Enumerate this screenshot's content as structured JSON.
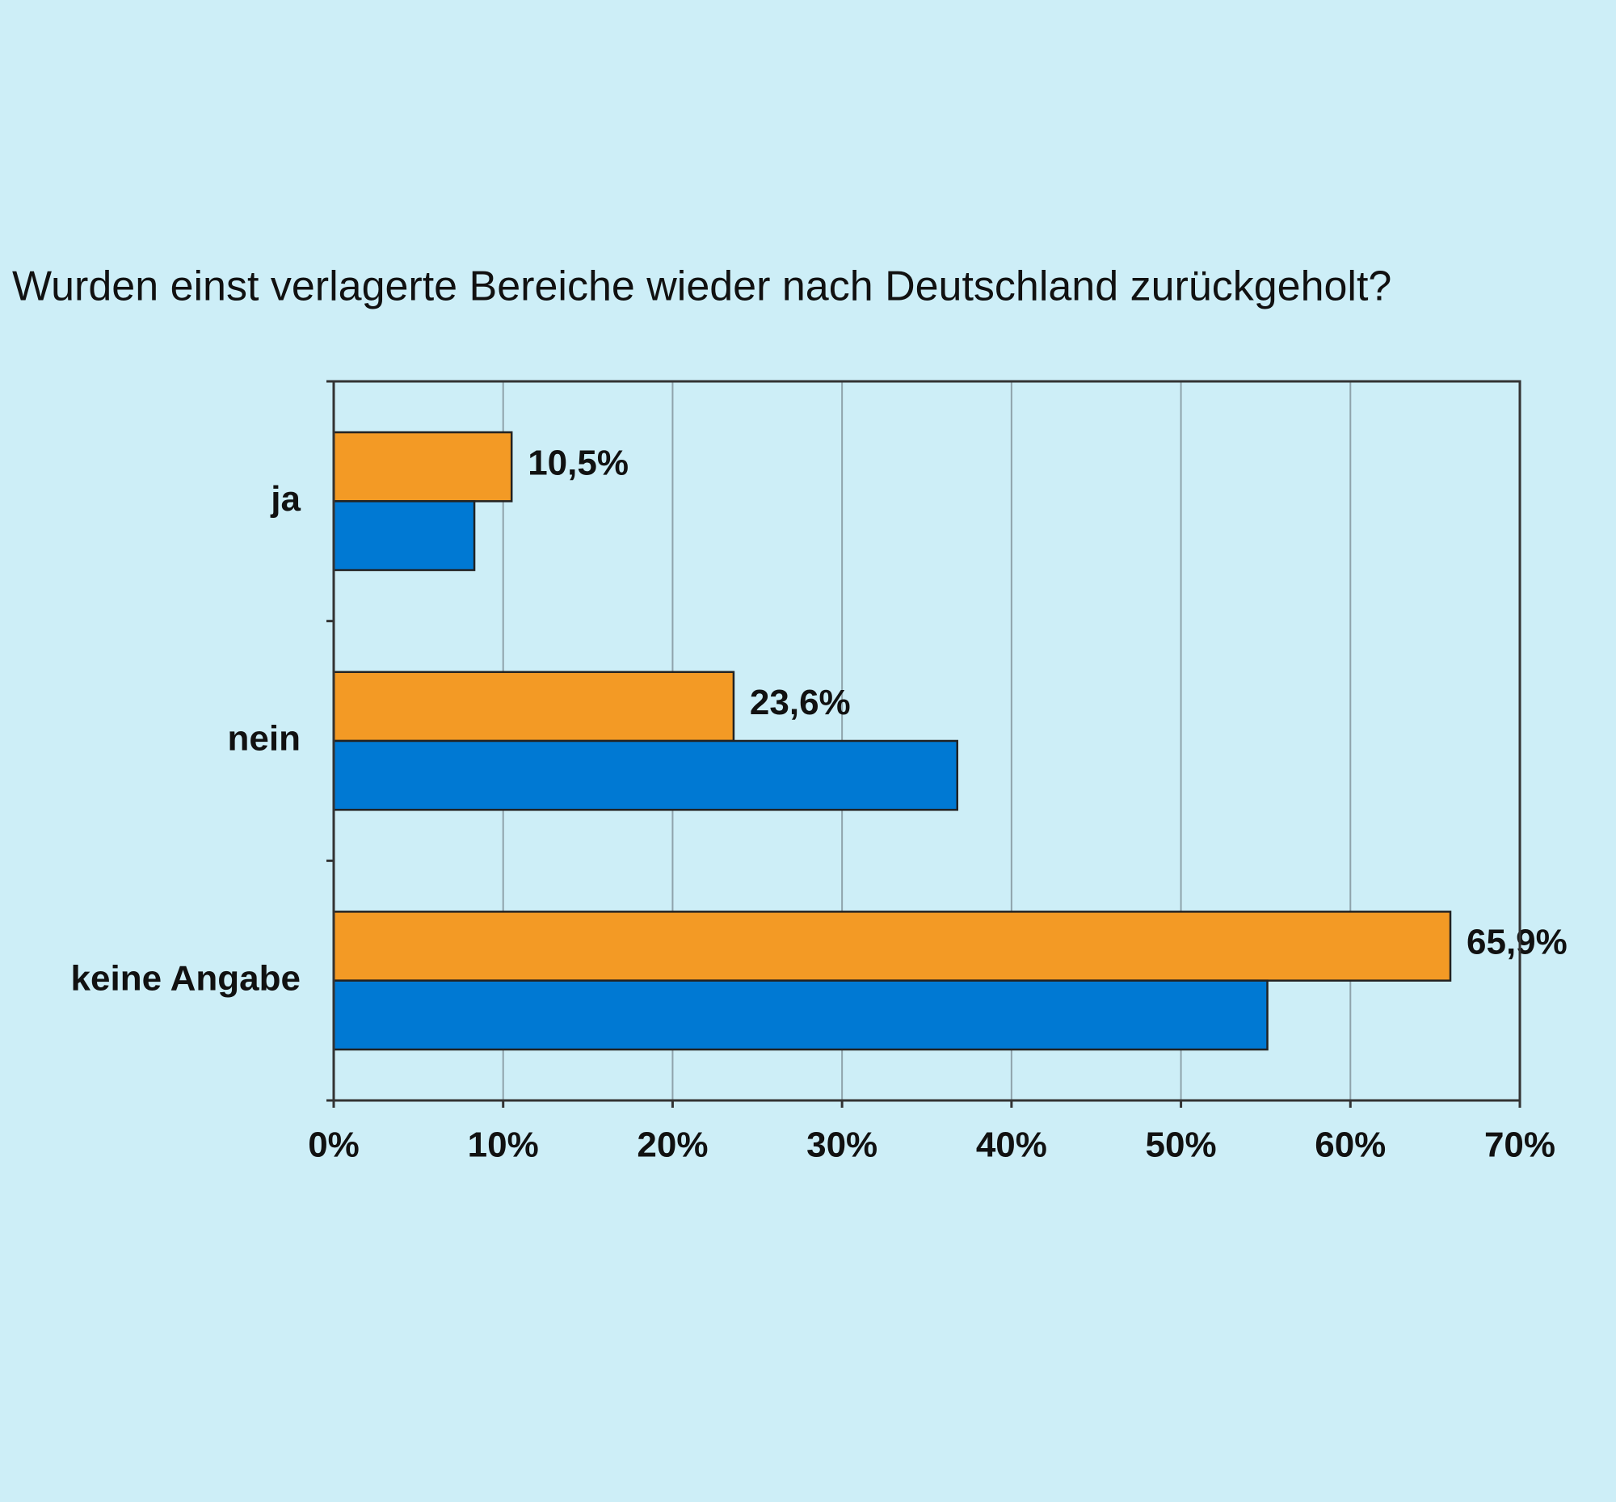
{
  "chart_data": {
    "type": "bar",
    "orientation": "horizontal",
    "title": "Wurden einst verlagerte Bereiche wieder nach Deutschland zurückgeholt?",
    "categories": [
      "ja",
      "nein",
      "keine Angabe"
    ],
    "series": [
      {
        "color": "#f39a25",
        "values": [
          10.5,
          23.6,
          65.9
        ],
        "value_labels": [
          "10,5%",
          "23,6%",
          "65,9%"
        ]
      },
      {
        "color": "#0079d3",
        "values": [
          8.3,
          36.8,
          55.1
        ]
      }
    ],
    "xlim": [
      0,
      70
    ],
    "xticks": [
      {
        "value": 0,
        "label": "0%"
      },
      {
        "value": 10,
        "label": "10%"
      },
      {
        "value": 20,
        "label": "20%"
      },
      {
        "value": 30,
        "label": "30%"
      },
      {
        "value": 40,
        "label": "40%"
      },
      {
        "value": 50,
        "label": "50%"
      },
      {
        "value": 60,
        "label": "60%"
      },
      {
        "value": 70,
        "label": "70%"
      }
    ],
    "grid": true
  }
}
